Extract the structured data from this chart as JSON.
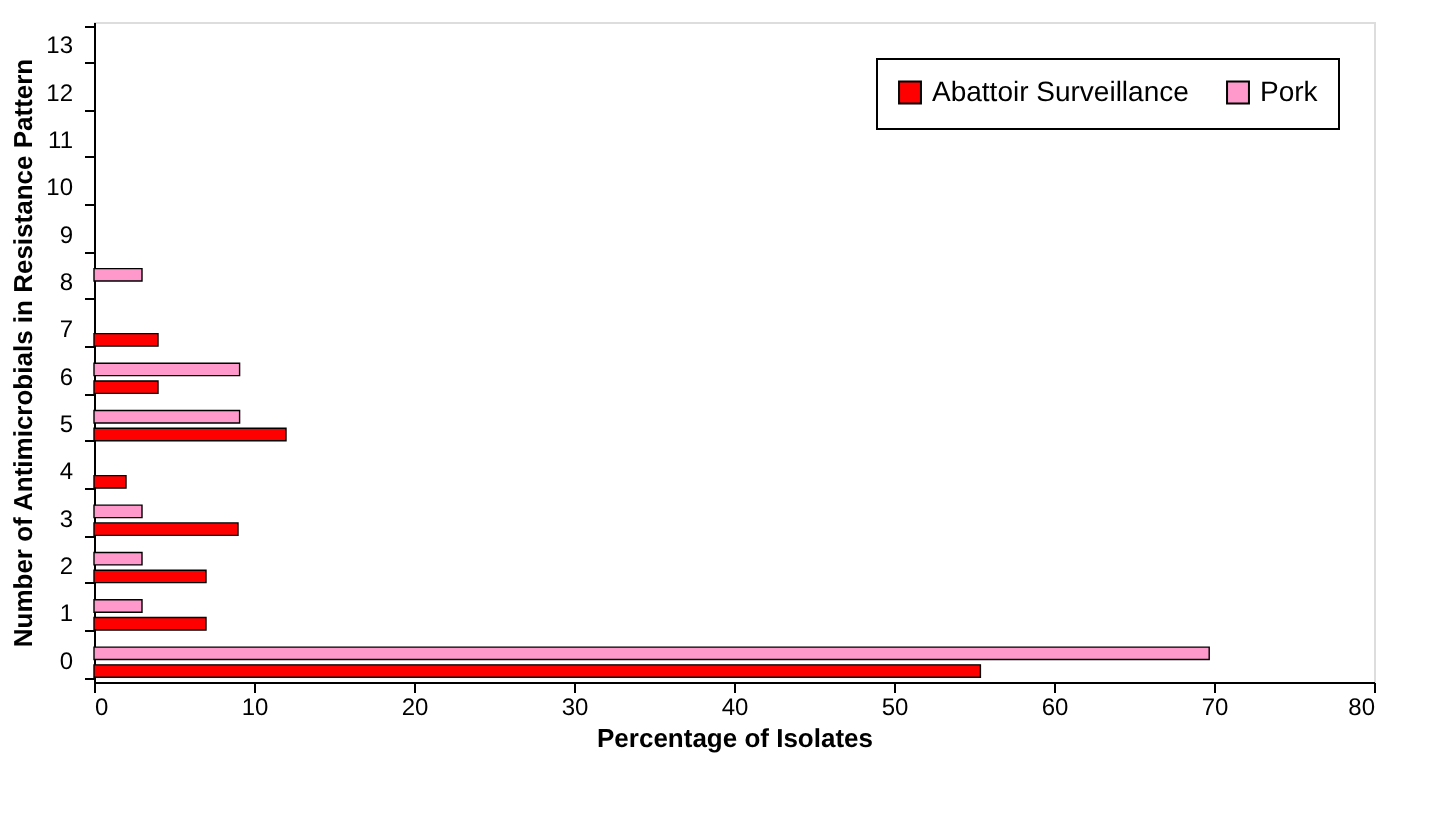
{
  "chart_data": {
    "type": "bar",
    "orientation": "horizontal",
    "xlabel": "Percentage of Isolates",
    "ylabel": "Number of Antimicrobials in Resistance Pattern",
    "categories": [
      "13",
      "12",
      "11",
      "10",
      "9",
      "8",
      "7",
      "6",
      "5",
      "4",
      "3",
      "2",
      "1",
      "0"
    ],
    "series": [
      {
        "name": "Abattoir Surveillance",
        "color": "#ff0000",
        "values": [
          null,
          null,
          null,
          null,
          null,
          null,
          4,
          4,
          12,
          2,
          9,
          7,
          7,
          55.4
        ]
      },
      {
        "name": "Pork",
        "color": "#ff99cc",
        "values": [
          null,
          null,
          null,
          null,
          null,
          3,
          null,
          9.1,
          9.1,
          null,
          3,
          3,
          3,
          69.7
        ]
      }
    ],
    "xlim": [
      0,
      80
    ],
    "xticks": [
      0,
      10,
      20,
      30,
      40,
      50,
      60,
      70,
      80
    ],
    "grid": false,
    "legend": "top right"
  }
}
